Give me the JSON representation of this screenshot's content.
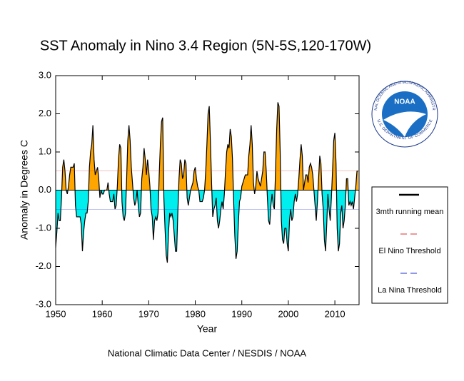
{
  "chart_data": {
    "type": "area",
    "title": "SST Anomaly in Nino 3.4 Region (5N-5S,120-170W)",
    "xlabel": "Year",
    "ylabel": "Anomaly in Degrees C",
    "footer": "National Climatic Data Center / NESDIS / NOAA",
    "logo": {
      "text": "NOAA",
      "ring_top": "NATIONAL OCEANIC AND ATMOSPHERIC ADMINISTRATION",
      "ring_bottom": "U.S. DEPARTMENT OF COMMERCE"
    },
    "xlim": [
      1950,
      2015.2
    ],
    "xticks": [
      1950,
      1960,
      1970,
      1980,
      1990,
      2000,
      2010
    ],
    "ylim": [
      -3,
      3
    ],
    "yticks": [
      {
        "value": -3,
        "label": "-3.0"
      },
      {
        "value": -2,
        "label": "-2.0"
      },
      {
        "value": -1,
        "label": "-1.0"
      },
      {
        "value": 0,
        "label": "0.0"
      },
      {
        "value": 1,
        "label": "1.0"
      },
      {
        "value": 2,
        "label": "2.0"
      },
      {
        "value": 3,
        "label": "3.0"
      }
    ],
    "positive_color": "#ffa500",
    "negative_color": "#00eeee",
    "thresholds": [
      {
        "name": "El Nino Threshold",
        "value": 0.5,
        "color": "#e03030"
      },
      {
        "name": "La Nina Threshold",
        "value": -0.5,
        "color": "#2030d0"
      }
    ],
    "x": [
      1950,
      1950.25,
      1950.5,
      1950.75,
      1951,
      1951.25,
      1951.5,
      1951.75,
      1952,
      1952.25,
      1952.5,
      1952.75,
      1953,
      1953.25,
      1953.5,
      1953.75,
      1954,
      1954.25,
      1954.5,
      1954.75,
      1955,
      1955.25,
      1955.5,
      1955.75,
      1956,
      1956.25,
      1956.5,
      1956.75,
      1957,
      1957.25,
      1957.5,
      1957.75,
      1958,
      1958.25,
      1958.5,
      1958.75,
      1959,
      1959.25,
      1959.5,
      1959.75,
      1960,
      1960.25,
      1960.5,
      1960.75,
      1961,
      1961.25,
      1961.5,
      1961.75,
      1962,
      1962.25,
      1962.5,
      1962.75,
      1963,
      1963.25,
      1963.5,
      1963.75,
      1964,
      1964.25,
      1964.5,
      1964.75,
      1965,
      1965.25,
      1965.5,
      1965.75,
      1966,
      1966.25,
      1966.5,
      1966.75,
      1967,
      1967.25,
      1967.5,
      1967.75,
      1968,
      1968.25,
      1968.5,
      1968.75,
      1969,
      1969.25,
      1969.5,
      1969.75,
      1970,
      1970.25,
      1970.5,
      1970.75,
      1971,
      1971.25,
      1971.5,
      1971.75,
      1972,
      1972.25,
      1972.5,
      1972.75,
      1973,
      1973.25,
      1973.5,
      1973.75,
      1974,
      1974.25,
      1974.5,
      1974.75,
      1975,
      1975.25,
      1975.5,
      1975.75,
      1976,
      1976.25,
      1976.5,
      1976.75,
      1977,
      1977.25,
      1977.5,
      1977.75,
      1978,
      1978.25,
      1978.5,
      1978.75,
      1979,
      1979.25,
      1979.5,
      1979.75,
      1980,
      1980.25,
      1980.5,
      1980.75,
      1981,
      1981.25,
      1981.5,
      1981.75,
      1982,
      1982.25,
      1982.5,
      1982.75,
      1983,
      1983.25,
      1983.5,
      1983.75,
      1984,
      1984.25,
      1984.5,
      1984.75,
      1985,
      1985.25,
      1985.5,
      1985.75,
      1986,
      1986.25,
      1986.5,
      1986.75,
      1987,
      1987.25,
      1987.5,
      1987.75,
      1988,
      1988.25,
      1988.5,
      1988.75,
      1989,
      1989.25,
      1989.5,
      1989.75,
      1990,
      1990.25,
      1990.5,
      1990.75,
      1991,
      1991.25,
      1991.5,
      1991.75,
      1992,
      1992.25,
      1992.5,
      1992.75,
      1993,
      1993.25,
      1993.5,
      1993.75,
      1994,
      1994.25,
      1994.5,
      1994.75,
      1995,
      1995.25,
      1995.5,
      1995.75,
      1996,
      1996.25,
      1996.5,
      1996.75,
      1997,
      1997.25,
      1997.5,
      1997.75,
      1998,
      1998.25,
      1998.5,
      1998.75,
      1999,
      1999.25,
      1999.5,
      1999.75,
      2000,
      2000.25,
      2000.5,
      2000.75,
      2001,
      2001.25,
      2001.5,
      2001.75,
      2002,
      2002.25,
      2002.5,
      2002.75,
      2003,
      2003.25,
      2003.5,
      2003.75,
      2004,
      2004.25,
      2004.5,
      2004.75,
      2005,
      2005.25,
      2005.5,
      2005.75,
      2006,
      2006.25,
      2006.5,
      2006.75,
      2007,
      2007.25,
      2007.5,
      2007.75,
      2008,
      2008.25,
      2008.5,
      2008.75,
      2009,
      2009.25,
      2009.5,
      2009.75,
      2010,
      2010.25,
      2010.5,
      2010.75,
      2011,
      2011.25,
      2011.5,
      2011.75,
      2012,
      2012.25,
      2012.5,
      2012.75,
      2013,
      2013.25,
      2013.5,
      2013.75,
      2014,
      2014.25,
      2014.5,
      2014.75,
      2015
    ],
    "series": [
      {
        "name": "3mth running mean",
        "color": "#000000",
        "values": [
          -1.5,
          -1.1,
          -0.6,
          -0.8,
          -0.8,
          -0.2,
          0.6,
          0.8,
          0.5,
          0.0,
          -0.1,
          0.1,
          0.4,
          0.6,
          0.6,
          0.6,
          0.7,
          -0.4,
          -0.7,
          -0.7,
          -0.7,
          -0.7,
          -0.9,
          -1.6,
          -1.1,
          -0.8,
          -0.6,
          -0.6,
          -0.3,
          0.6,
          1.0,
          1.2,
          1.7,
          0.8,
          0.4,
          0.5,
          0.6,
          0.3,
          -0.2,
          0.0,
          -0.1,
          -0.1,
          0.0,
          0.0,
          0.0,
          0.2,
          -0.1,
          -0.3,
          -0.3,
          -0.3,
          -0.1,
          -0.5,
          -0.4,
          0.1,
          0.8,
          1.2,
          1.1,
          -0.3,
          -0.7,
          -0.8,
          -0.6,
          0.3,
          1.3,
          1.7,
          1.3,
          0.6,
          0.2,
          -0.2,
          -0.4,
          -0.3,
          0.0,
          -0.4,
          -0.7,
          -0.6,
          0.3,
          0.6,
          1.1,
          0.8,
          0.4,
          0.8,
          0.5,
          0.1,
          -0.5,
          -0.7,
          -1.3,
          -0.8,
          -0.7,
          -0.8,
          -0.6,
          0.4,
          1.2,
          1.8,
          1.9,
          -0.2,
          -1.0,
          -1.7,
          -1.9,
          -1.1,
          -0.6,
          -0.7,
          -0.6,
          -0.8,
          -1.2,
          -1.6,
          -1.6,
          -0.6,
          0.3,
          0.8,
          0.7,
          0.3,
          0.4,
          0.8,
          0.7,
          -0.2,
          -0.4,
          -0.2,
          0.0,
          0.1,
          0.2,
          0.5,
          0.6,
          0.3,
          0.1,
          0.0,
          -0.3,
          -0.3,
          -0.3,
          -0.2,
          0.0,
          0.5,
          1.2,
          2.0,
          2.2,
          1.3,
          0.2,
          -0.7,
          -0.5,
          -0.4,
          -0.2,
          -0.8,
          -1.0,
          -0.8,
          -0.5,
          -0.3,
          -0.5,
          -0.1,
          0.5,
          1.0,
          1.2,
          1.1,
          1.6,
          1.4,
          0.8,
          -0.3,
          -1.2,
          -1.8,
          -1.6,
          -0.9,
          -0.3,
          -0.2,
          0.1,
          0.2,
          0.3,
          0.4,
          0.4,
          0.4,
          0.9,
          1.2,
          1.7,
          1.2,
          0.2,
          -0.1,
          0.1,
          0.5,
          0.3,
          0.2,
          0.1,
          0.3,
          0.5,
          1.0,
          1.0,
          0.5,
          -0.2,
          -0.8,
          -0.9,
          -0.4,
          -0.1,
          -0.4,
          -0.5,
          0.5,
          1.6,
          2.3,
          2.2,
          1.0,
          -0.8,
          -1.3,
          -1.4,
          -1.0,
          -1.0,
          -1.4,
          -1.6,
          -0.8,
          -0.5,
          -0.8,
          -0.7,
          -0.3,
          -0.1,
          -0.3,
          -0.1,
          0.3,
          0.8,
          1.2,
          0.9,
          0.0,
          0.2,
          0.4,
          0.4,
          0.2,
          0.6,
          0.7,
          0.6,
          0.4,
          0.0,
          -0.4,
          -0.8,
          -0.3,
          0.3,
          0.9,
          0.7,
          -0.1,
          -0.5,
          -1.3,
          -1.6,
          -0.9,
          -0.1,
          -0.5,
          -0.8,
          -0.2,
          0.5,
          1.3,
          1.5,
          0.7,
          -1.0,
          -1.6,
          -1.4,
          -0.6,
          -0.4,
          -1.0,
          -0.8,
          -0.4,
          0.3,
          0.3,
          -0.4,
          -0.3,
          -0.4,
          -0.3,
          -0.5,
          -0.2,
          0.1,
          0.5,
          0.5
        ]
      }
    ]
  }
}
